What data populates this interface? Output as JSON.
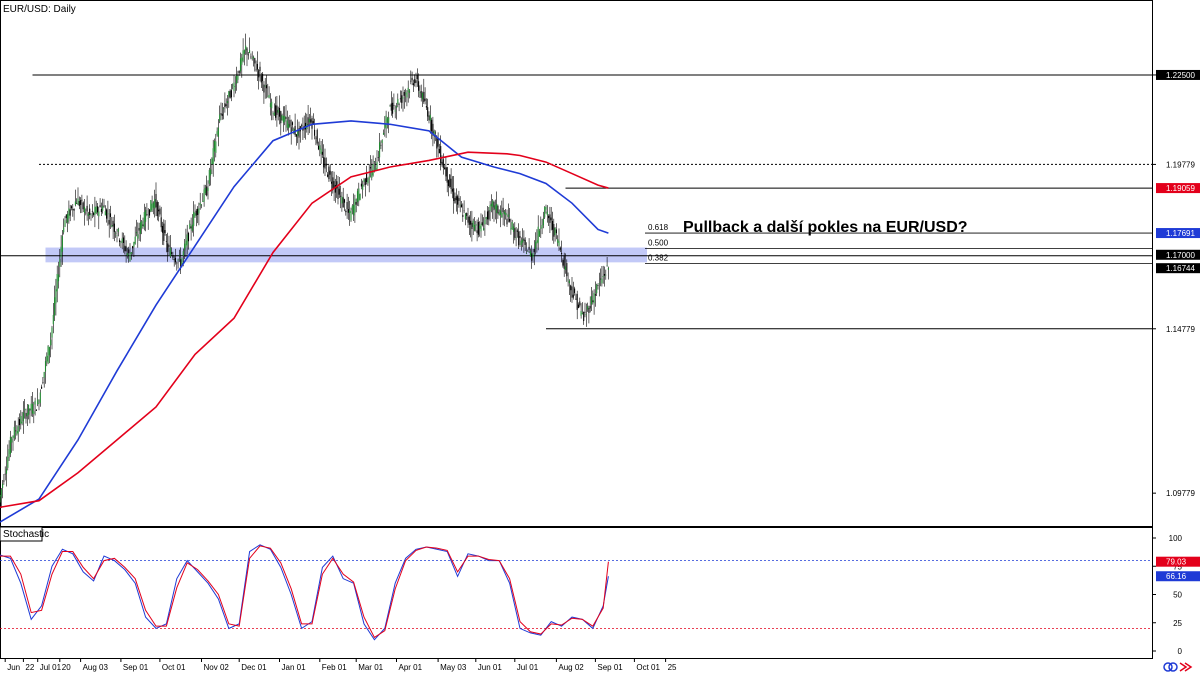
{
  "chart_data": {
    "type": "candlestick",
    "main_panel": {
      "symbol_label": "EUR/USD: Daily",
      "annotation": "Pullback a další pokles na EUR/USD?",
      "ylim": [
        1.0878,
        1.2478
      ],
      "y_ticks": [
        {
          "label": "1.22500",
          "value": 1.225
        },
        {
          "label": "1.19779",
          "value": 1.19779
        },
        {
          "label": "1.14779",
          "value": 1.14779
        },
        {
          "label": "1.09779",
          "value": 1.09779
        }
      ],
      "price_tags": [
        {
          "label": "1.22500",
          "value": 1.225,
          "color": "#000000"
        },
        {
          "label": "1.19059",
          "value": 1.19059,
          "color": "#e3001b"
        },
        {
          "label": "1.17691",
          "value": 1.17691,
          "color": "#1f3bd6"
        },
        {
          "label": "1.17000",
          "value": 1.17,
          "color": "#000000"
        },
        {
          "label": "1.16744",
          "value": 1.16744,
          "color": "#000000"
        }
      ],
      "horizontal_lines": [
        {
          "value": 1.225,
          "style": "solid",
          "from_day": 25
        },
        {
          "value": 1.19779,
          "style": "dotted",
          "from_day": 30
        },
        {
          "value": 1.19059,
          "style": "solid",
          "from_day": 435
        },
        {
          "value": 1.17,
          "style": "solid",
          "from_day": 0
        },
        {
          "value": 1.14779,
          "style": "solid",
          "from_day": 420
        }
      ],
      "support_zone": {
        "low": 1.168,
        "high": 1.1725,
        "from_day": 45,
        "to_day": 500,
        "color": "#8f9cf0"
      },
      "fibonacci": [
        {
          "label": "0.618",
          "value": 1.1769
        },
        {
          "label": "0.500",
          "value": 1.1722
        },
        {
          "label": "0.382",
          "value": 1.1676
        }
      ],
      "series": [
        {
          "name": "Moving average (blue)",
          "color": "#1f3bd6",
          "x": [
            0,
            30,
            60,
            90,
            120,
            150,
            180,
            210,
            240,
            270,
            300,
            330,
            355,
            380,
            400,
            420,
            440,
            460,
            468
          ],
          "y": [
            1.089,
            1.096,
            1.114,
            1.135,
            1.155,
            1.173,
            1.191,
            1.205,
            1.21,
            1.211,
            1.21,
            1.208,
            1.2,
            1.197,
            1.195,
            1.192,
            1.186,
            1.178,
            1.1769
          ]
        },
        {
          "name": "Moving average (red)",
          "color": "#e3001b",
          "x": [
            0,
            30,
            60,
            90,
            120,
            150,
            180,
            210,
            240,
            270,
            300,
            330,
            360,
            390,
            400,
            420,
            440,
            460,
            468
          ],
          "y": [
            1.0935,
            1.0955,
            1.104,
            1.114,
            1.124,
            1.14,
            1.151,
            1.171,
            1.186,
            1.194,
            1.197,
            1.199,
            1.2015,
            1.201,
            1.2005,
            1.1985,
            1.195,
            1.1915,
            1.1906
          ]
        }
      ],
      "ohlc_path": {
        "x": [
          0,
          10,
          20,
          30,
          40,
          50,
          60,
          70,
          80,
          90,
          100,
          110,
          120,
          130,
          140,
          150,
          160,
          170,
          180,
          190,
          200,
          210,
          220,
          230,
          240,
          250,
          260,
          270,
          280,
          290,
          300,
          310,
          320,
          330,
          340,
          350,
          360,
          370,
          380,
          390,
          400,
          410,
          420,
          430,
          440,
          450,
          460,
          468
        ],
        "y": [
          1.095,
          1.115,
          1.122,
          1.125,
          1.145,
          1.18,
          1.187,
          1.182,
          1.185,
          1.178,
          1.17,
          1.18,
          1.187,
          1.172,
          1.168,
          1.182,
          1.19,
          1.212,
          1.221,
          1.233,
          1.226,
          1.215,
          1.211,
          1.207,
          1.212,
          1.198,
          1.19,
          1.182,
          1.192,
          1.198,
          1.214,
          1.218,
          1.224,
          1.214,
          1.2,
          1.188,
          1.181,
          1.178,
          1.185,
          1.182,
          1.175,
          1.17,
          1.184,
          1.175,
          1.16,
          1.151,
          1.16,
          1.166
        ]
      },
      "x_ticks": [
        {
          "label": "Jun",
          "day": 4
        },
        {
          "label": "22",
          "day": 18
        },
        {
          "label": "Jul 01",
          "day": 29
        },
        {
          "label": "20",
          "day": 46
        },
        {
          "label": "Aug 03",
          "day": 62
        },
        {
          "label": "Sep 01",
          "day": 93
        },
        {
          "label": "Oct 01",
          "day": 123
        },
        {
          "label": "Nov 02",
          "day": 155
        },
        {
          "label": "Dec 01",
          "day": 184
        },
        {
          "label": "Jan 01",
          "day": 215
        },
        {
          "label": "Feb 01",
          "day": 246
        },
        {
          "label": "Mar 01",
          "day": 274
        },
        {
          "label": "Apr 01",
          "day": 305
        },
        {
          "label": "May 03",
          "day": 337
        },
        {
          "label": "Jun 01",
          "day": 366
        },
        {
          "label": "Jul 01",
          "day": 396
        },
        {
          "label": "Aug 02",
          "day": 428
        },
        {
          "label": "Sep 01",
          "day": 458
        },
        {
          "label": "Oct 01",
          "day": 488
        },
        {
          "label": "25",
          "day": 512
        }
      ]
    },
    "stochastic_panel": {
      "label": "Stochastic",
      "ylim": [
        0,
        100
      ],
      "y_ticks": [
        "100",
        "75",
        "50",
        "25",
        "0"
      ],
      "levels": [
        80,
        20
      ],
      "price_tags": [
        {
          "label": "79.03",
          "value": 79.03,
          "color": "#e3001b"
        },
        {
          "label": "66.16",
          "value": 66.16,
          "color": "#1f3bd6"
        }
      ],
      "series": [
        {
          "name": "%K",
          "color": "#1f3bd6",
          "x": [
            0,
            8,
            16,
            24,
            32,
            40,
            48,
            56,
            64,
            72,
            80,
            88,
            96,
            104,
            112,
            120,
            128,
            136,
            144,
            152,
            160,
            168,
            176,
            184,
            192,
            200,
            208,
            216,
            224,
            232,
            240,
            248,
            256,
            264,
            272,
            280,
            288,
            296,
            304,
            312,
            320,
            328,
            336,
            344,
            352,
            360,
            368,
            376,
            384,
            392,
            400,
            408,
            416,
            424,
            432,
            440,
            448,
            456,
            464,
            468
          ],
          "y": [
            85,
            82,
            60,
            28,
            40,
            75,
            90,
            86,
            70,
            62,
            84,
            80,
            72,
            60,
            30,
            20,
            24,
            64,
            80,
            70,
            60,
            46,
            20,
            24,
            88,
            94,
            90,
            74,
            50,
            20,
            26,
            74,
            84,
            64,
            60,
            24,
            10,
            20,
            60,
            82,
            90,
            92,
            90,
            88,
            66,
            86,
            84,
            80,
            80,
            60,
            20,
            16,
            14,
            26,
            22,
            30,
            28,
            20,
            40,
            66.16
          ]
        },
        {
          "name": "%D",
          "color": "#e3001b",
          "x": [
            0,
            8,
            16,
            24,
            32,
            40,
            48,
            56,
            64,
            72,
            80,
            88,
            96,
            104,
            112,
            120,
            128,
            136,
            144,
            152,
            160,
            168,
            176,
            184,
            192,
            200,
            208,
            216,
            224,
            232,
            240,
            248,
            256,
            264,
            272,
            280,
            288,
            296,
            304,
            312,
            320,
            328,
            336,
            344,
            352,
            360,
            368,
            376,
            384,
            392,
            400,
            408,
            416,
            424,
            432,
            440,
            448,
            456,
            464,
            468
          ],
          "y": [
            84,
            84,
            68,
            34,
            36,
            68,
            88,
            88,
            74,
            64,
            80,
            82,
            74,
            64,
            36,
            22,
            22,
            56,
            78,
            72,
            62,
            50,
            24,
            22,
            82,
            93,
            91,
            78,
            55,
            24,
            24,
            68,
            82,
            68,
            61,
            30,
            12,
            18,
            55,
            80,
            89,
            92,
            91,
            89,
            70,
            84,
            84,
            81,
            80,
            64,
            26,
            17,
            15,
            24,
            23,
            29,
            28,
            22,
            38,
            79.03
          ]
        }
      ]
    }
  }
}
